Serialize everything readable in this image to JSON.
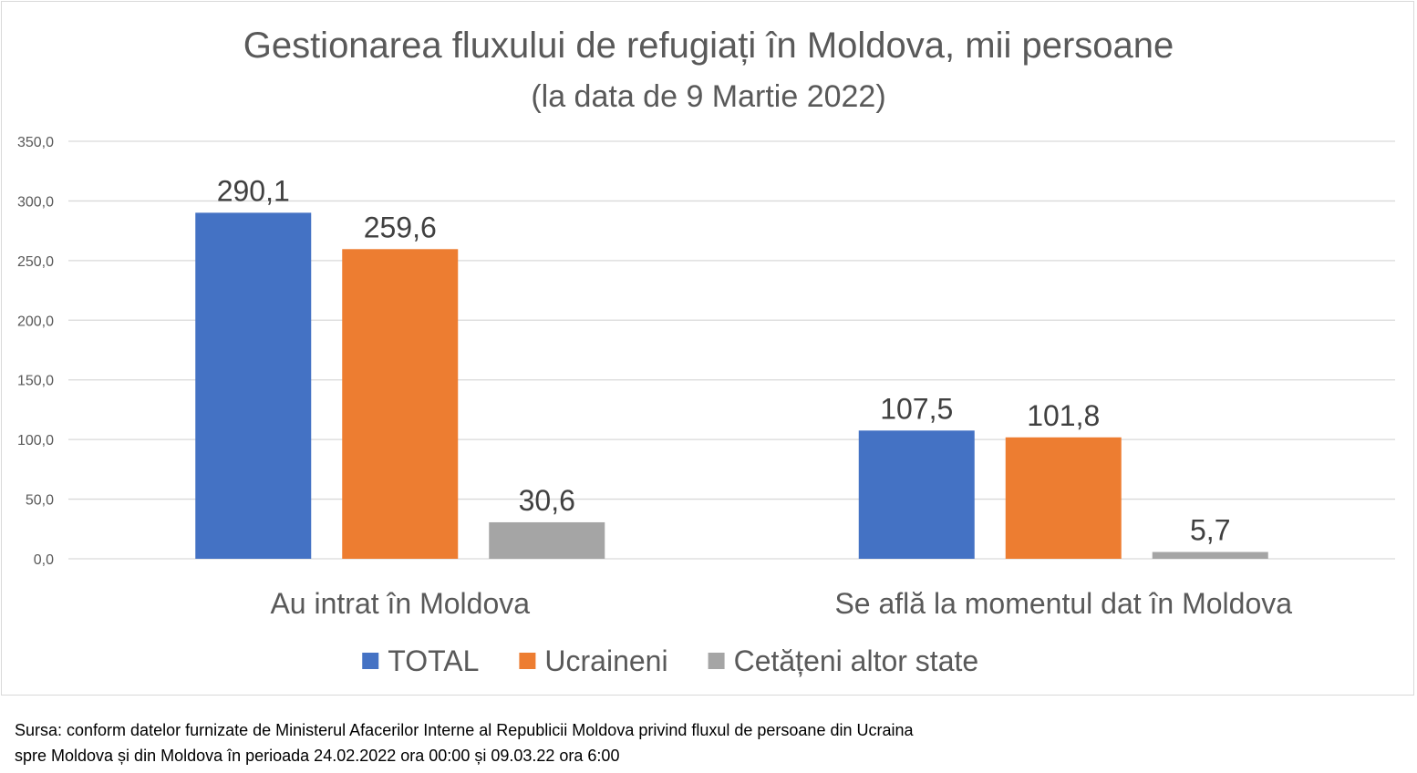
{
  "chart_data": {
    "type": "bar",
    "title": "Gestionarea fluxului de refugiați în Moldova, mii persoane",
    "subtitle": "(la data de 9 Martie 2022)",
    "categories": [
      "Au intrat în Moldova",
      "Se află la momentul dat în Moldova"
    ],
    "series": [
      {
        "name": "TOTAL",
        "color": "#4472c4",
        "values": [
          290.1,
          107.5
        ],
        "labels": [
          "290,1",
          "107,5"
        ]
      },
      {
        "name": "Ucraineni",
        "color": "#ed7d31",
        "values": [
          259.6,
          101.8
        ],
        "labels": [
          "259,6",
          "101,8"
        ]
      },
      {
        "name": "Cetățeni altor state",
        "color": "#a5a5a5",
        "values": [
          30.6,
          5.7
        ],
        "labels": [
          "30,6",
          "5,7"
        ]
      }
    ],
    "ylim": [
      0,
      350
    ],
    "yticks": [
      0,
      50,
      100,
      150,
      200,
      250,
      300,
      350
    ],
    "ytick_labels": [
      "0,0",
      "50,0",
      "100,0",
      "150,0",
      "200,0",
      "250,0",
      "300,0",
      "350,0"
    ],
    "grid": true,
    "legend": "bottom"
  },
  "source": {
    "line1": "Sursa: conform datelor furnizate de Ministerul Afacerilor Interne al Republicii Moldova privind fluxul de persoane din Ucraina",
    "line2": "spre Moldova și din Moldova în perioada 24.02.2022 ora 00:00 și 09.03.22 ora 6:00"
  }
}
